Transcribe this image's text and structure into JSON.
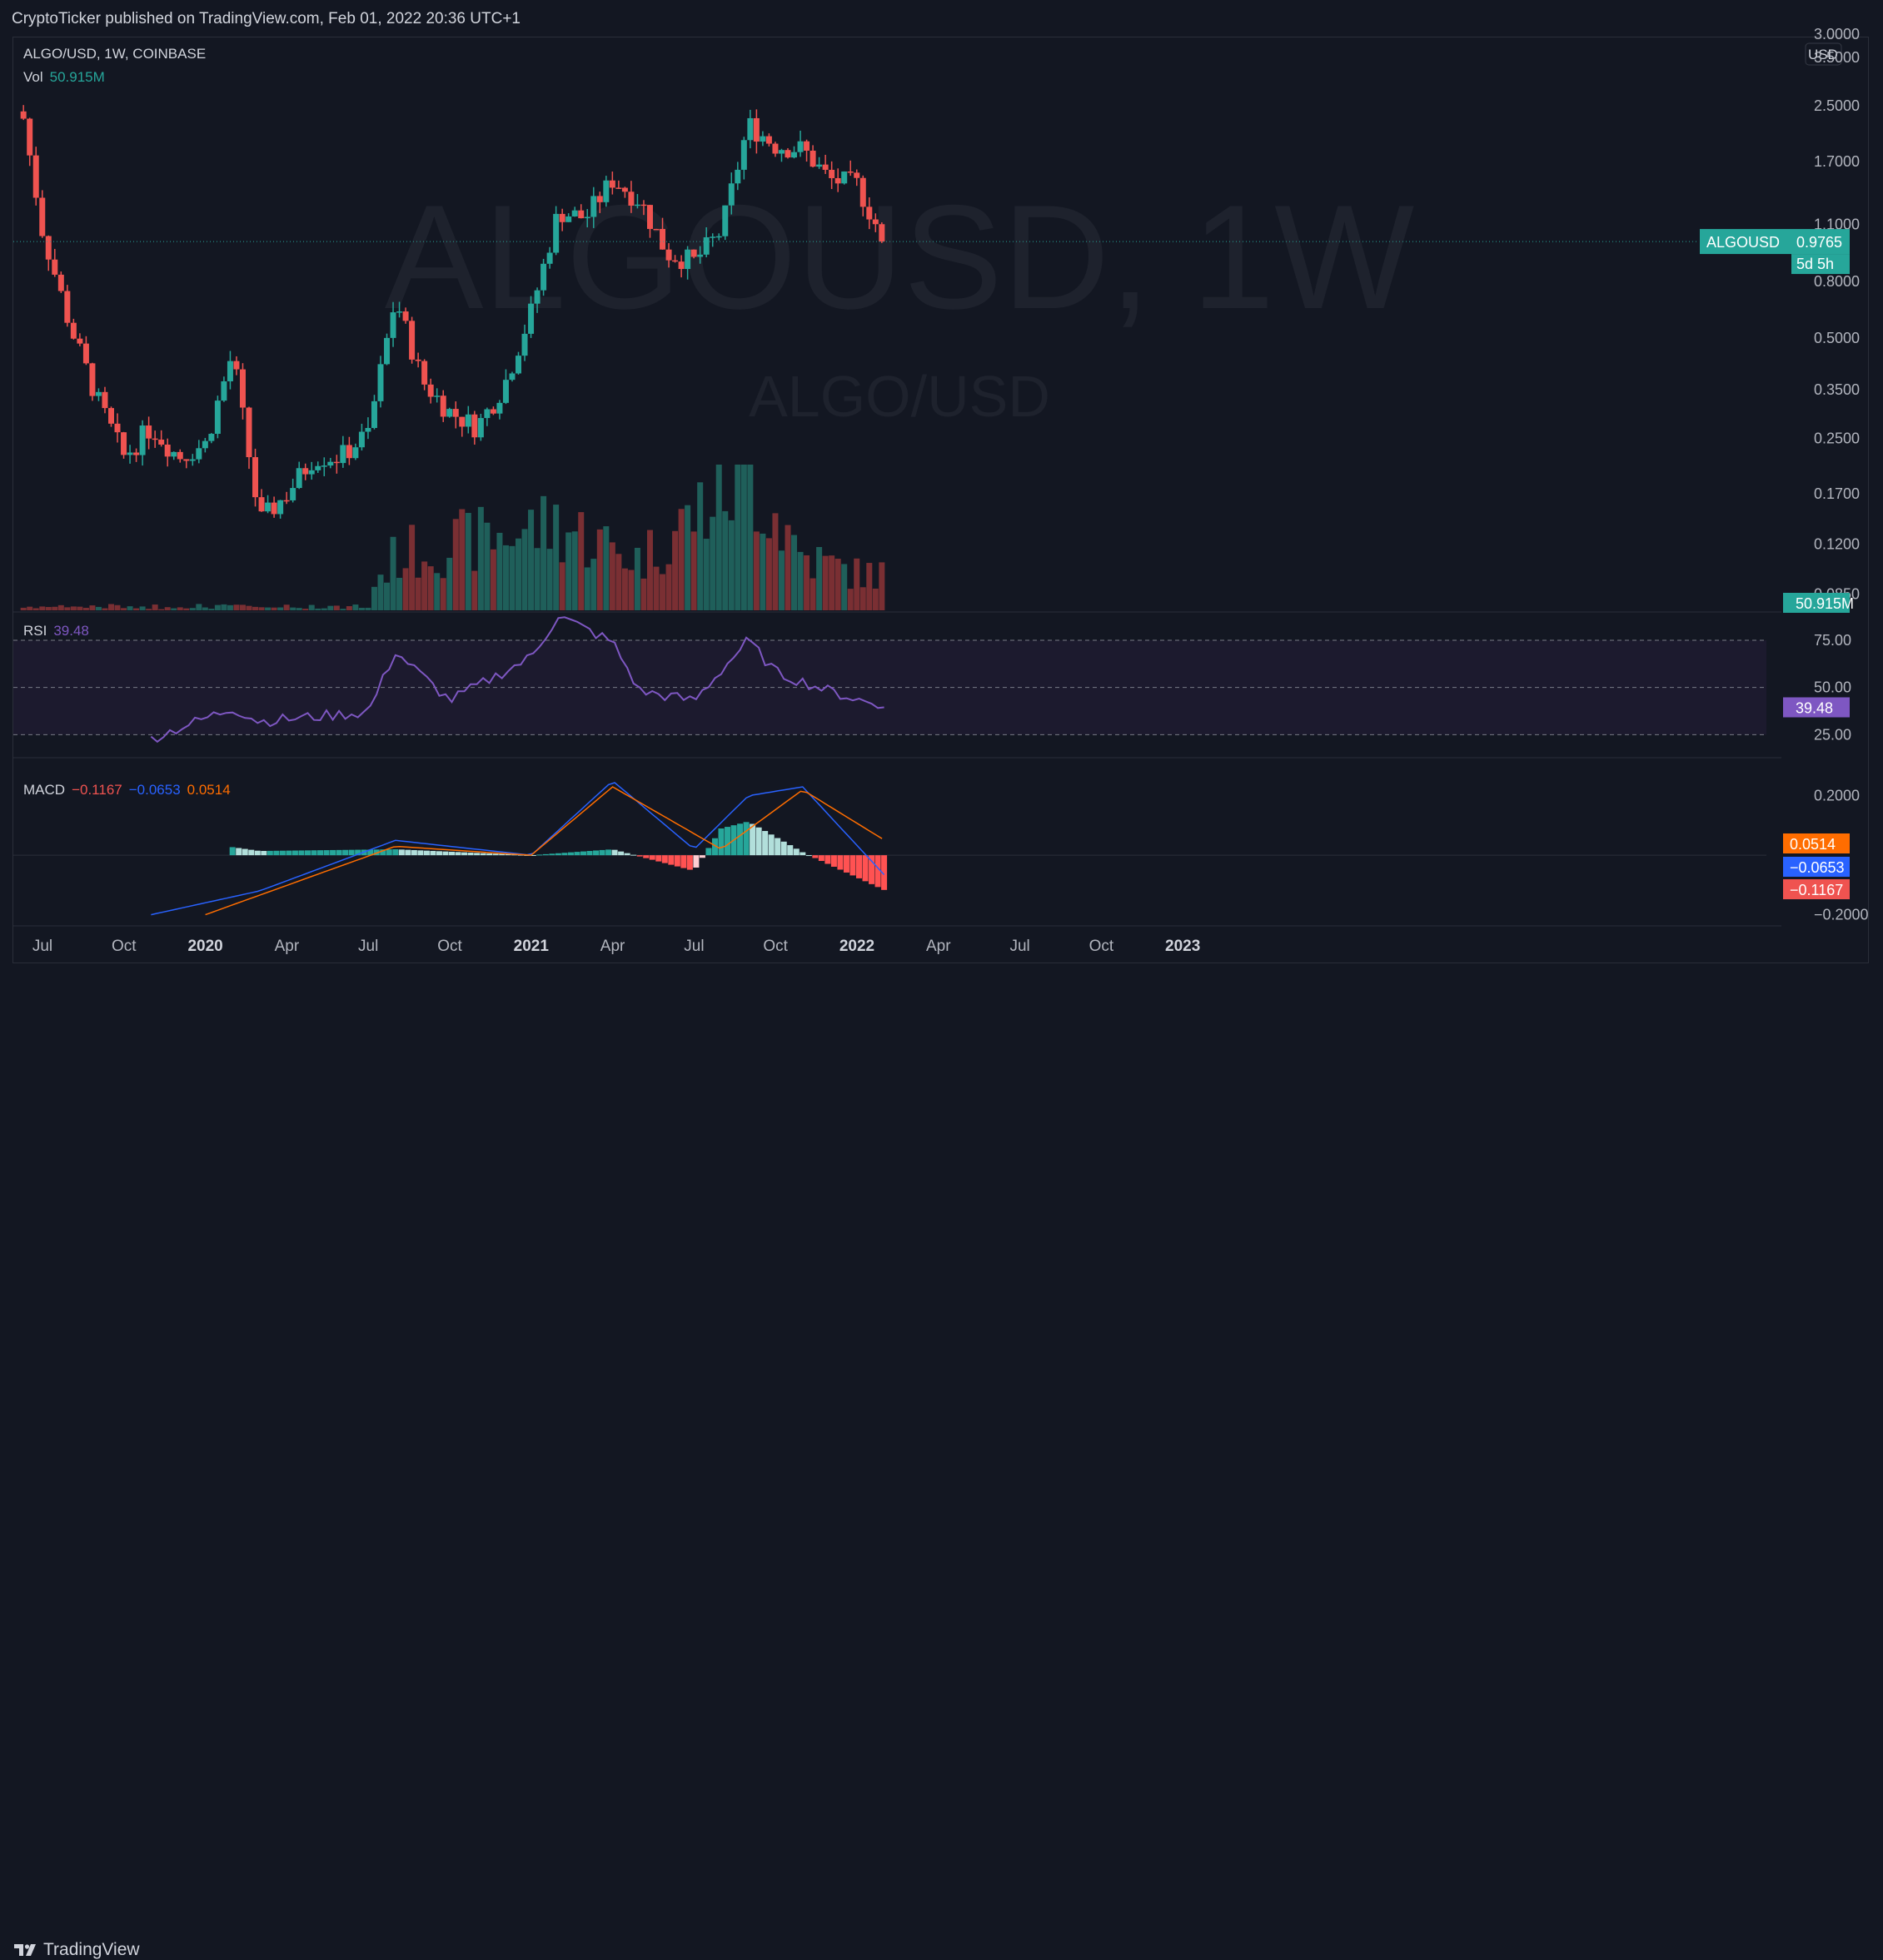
{
  "header": {
    "published_text": "CryptoTicker published on TradingView.com, Feb 01, 2022 20:36 UTC+1"
  },
  "footer": {
    "brand": "TradingView"
  },
  "watermark": {
    "symbol_large": "ALGOUSD, 1W",
    "pair": "ALGO/USD"
  },
  "legend": {
    "symbol_line": "ALGO/USD, 1W, COINBASE",
    "vol_label": "Vol",
    "vol_value": "50.915M",
    "rsi_label": "RSI",
    "rsi_value": "39.48",
    "macd_label": "MACD",
    "macd_hist": "−0.1167",
    "macd_line": "−0.0653",
    "macd_signal": "0.0514"
  },
  "price_scale": {
    "currency": "USD",
    "labels": [
      "3.0000",
      "3.5000",
      "2.5000",
      "1.7000",
      "1.1000",
      "0.8000",
      "0.5000",
      "0.3500",
      "0.2500",
      "0.1700",
      "0.1200",
      "0.0850"
    ],
    "last_symbol": "ALGOUSD",
    "last_price": "0.9765",
    "countdown": "5d 5h",
    "vol_tag": "50.915M"
  },
  "rsi_scale": {
    "labels": [
      "75.00",
      "50.00",
      "25.00"
    ],
    "current_tag": "39.48"
  },
  "macd_scale": {
    "labels": [
      "0.2000",
      "−0.2000"
    ],
    "tag_signal": "0.0514",
    "tag_macd": "−0.0653",
    "tag_hist": "−0.1167"
  },
  "time_axis": {
    "labels": [
      "Jul",
      "Oct",
      "2020",
      "Apr",
      "Jul",
      "Oct",
      "2021",
      "Apr",
      "Jul",
      "Oct",
      "2022",
      "Apr",
      "Jul",
      "Oct",
      "2023"
    ]
  },
  "colors": {
    "up": "#26a69a",
    "down": "#ef5350",
    "rsi": "#7e57c2",
    "macd": "#2962ff",
    "signal": "#ff6d00",
    "background": "#131722"
  },
  "chart_data": {
    "type": "candlestick",
    "symbol": "ALGO/USD",
    "interval": "1W",
    "exchange": "COINBASE",
    "y_scale": "log",
    "ylim": [
      0.075,
      3.9
    ],
    "x_range": [
      "2019-06",
      "2023-02"
    ],
    "last_price": 0.9765,
    "price_anchors": [
      {
        "date": "2019-06",
        "price": 3.2
      },
      {
        "date": "2019-07",
        "price": 1.05
      },
      {
        "date": "2019-08",
        "price": 0.55
      },
      {
        "date": "2019-09",
        "price": 0.33
      },
      {
        "date": "2019-10",
        "price": 0.22
      },
      {
        "date": "2019-11",
        "price": 0.27
      },
      {
        "date": "2019-12",
        "price": 0.22
      },
      {
        "date": "2020-01",
        "price": 0.24
      },
      {
        "date": "2020-02",
        "price": 0.45
      },
      {
        "date": "2020-03",
        "price": 0.14
      },
      {
        "date": "2020-04",
        "price": 0.17
      },
      {
        "date": "2020-05",
        "price": 0.22
      },
      {
        "date": "2020-06",
        "price": 0.22
      },
      {
        "date": "2020-07",
        "price": 0.26
      },
      {
        "date": "2020-08",
        "price": 0.66
      },
      {
        "date": "2020-09",
        "price": 0.37
      },
      {
        "date": "2020-10",
        "price": 0.3
      },
      {
        "date": "2020-11",
        "price": 0.27
      },
      {
        "date": "2020-12",
        "price": 0.36
      },
      {
        "date": "2021-01",
        "price": 0.6
      },
      {
        "date": "2021-02",
        "price": 1.2
      },
      {
        "date": "2021-03",
        "price": 1.15
      },
      {
        "date": "2021-04",
        "price": 1.5
      },
      {
        "date": "2021-05",
        "price": 1.3
      },
      {
        "date": "2021-06",
        "price": 0.9
      },
      {
        "date": "2021-07",
        "price": 0.85
      },
      {
        "date": "2021-08",
        "price": 1.05
      },
      {
        "date": "2021-09",
        "price": 2.2
      },
      {
        "date": "2021-10",
        "price": 1.9
      },
      {
        "date": "2021-11",
        "price": 1.85
      },
      {
        "date": "2021-12",
        "price": 1.5
      },
      {
        "date": "2022-01",
        "price": 1.45
      },
      {
        "date": "2022-02",
        "price": 0.9765
      }
    ],
    "volume_anchors_millions": [
      {
        "date": "2020-07",
        "value": 40
      },
      {
        "date": "2020-08",
        "value": 120
      },
      {
        "date": "2021-02",
        "value": 190
      },
      {
        "date": "2021-05",
        "value": 110
      },
      {
        "date": "2021-09",
        "value": 310
      },
      {
        "date": "2021-11",
        "value": 120
      },
      {
        "date": "2022-01",
        "value": 80
      }
    ],
    "rsi": {
      "value": 39.48,
      "levels": [
        75,
        50,
        25
      ],
      "ylim": [
        15,
        90
      ],
      "anchors": [
        {
          "date": "2019-11",
          "value": 23
        },
        {
          "date": "2020-02",
          "value": 39
        },
        {
          "date": "2020-03",
          "value": 32
        },
        {
          "date": "2020-07",
          "value": 37
        },
        {
          "date": "2020-08",
          "value": 69
        },
        {
          "date": "2020-10",
          "value": 43
        },
        {
          "date": "2021-01",
          "value": 66
        },
        {
          "date": "2021-02",
          "value": 88
        },
        {
          "date": "2021-04",
          "value": 74
        },
        {
          "date": "2021-05",
          "value": 48
        },
        {
          "date": "2021-07",
          "value": 43
        },
        {
          "date": "2021-09",
          "value": 75
        },
        {
          "date": "2021-10",
          "value": 58
        },
        {
          "date": "2021-12",
          "value": 48
        },
        {
          "date": "2022-02",
          "value": 39.48
        }
      ]
    },
    "macd": {
      "macd": -0.0653,
      "signal": 0.0514,
      "histogram": -0.1167,
      "ylim": [
        -0.26,
        0.3
      ],
      "macd_anchors": [
        {
          "date": "2019-11",
          "value": -0.2
        },
        {
          "date": "2020-03",
          "value": -0.12
        },
        {
          "date": "2020-08",
          "value": 0.05
        },
        {
          "date": "2021-01",
          "value": 0.0
        },
        {
          "date": "2021-04",
          "value": 0.25
        },
        {
          "date": "2021-07",
          "value": 0.02
        },
        {
          "date": "2021-09",
          "value": 0.2
        },
        {
          "date": "2021-11",
          "value": 0.23
        },
        {
          "date": "2022-02",
          "value": -0.0653
        }
      ],
      "signal_anchors": [
        {
          "date": "2020-01",
          "value": -0.2
        },
        {
          "date": "2020-08",
          "value": 0.03
        },
        {
          "date": "2021-01",
          "value": 0.0
        },
        {
          "date": "2021-04",
          "value": 0.23
        },
        {
          "date": "2021-08",
          "value": 0.02
        },
        {
          "date": "2021-11",
          "value": 0.22
        },
        {
          "date": "2022-02",
          "value": 0.0514
        }
      ]
    }
  }
}
